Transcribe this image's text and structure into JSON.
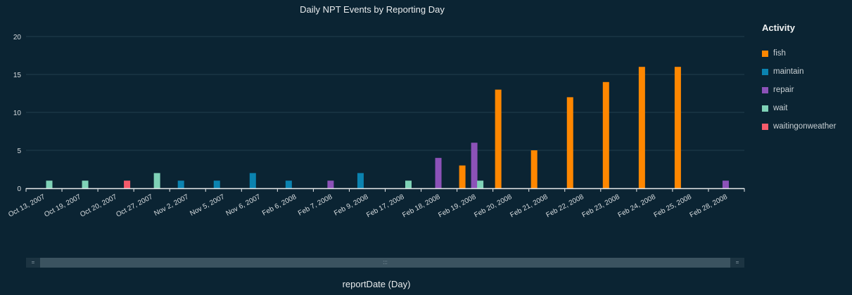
{
  "chart_data": {
    "type": "bar",
    "title": "Daily NPT Events by Reporting Day",
    "xlabel": "reportDate (Day)",
    "ylabel": "",
    "ylim": [
      0,
      20
    ],
    "yticks": [
      0,
      5,
      10,
      15,
      20
    ],
    "grid": true,
    "legend_title": "Activity",
    "legend_position": "right",
    "categories": [
      "Oct 13, 2007",
      "Oct 19, 2007",
      "Oct 20, 2007",
      "Oct 27, 2007",
      "Nov 2, 2007",
      "Nov 5, 2007",
      "Nov 6, 2007",
      "Feb 6, 2008",
      "Feb 7, 2008",
      "Feb 9, 2008",
      "Feb 17, 2008",
      "Feb 18, 2008",
      "Feb 19, 2008",
      "Feb 20, 2008",
      "Feb 21, 2008",
      "Feb 22, 2008",
      "Feb 23, 2008",
      "Feb 24, 2008",
      "Feb 25, 2008",
      "Feb 28, 2008"
    ],
    "series": [
      {
        "name": "fish",
        "color": "#ff8700",
        "values": [
          0,
          0,
          0,
          0,
          0,
          0,
          0,
          0,
          0,
          0,
          0,
          0,
          3,
          13,
          5,
          12,
          14,
          16,
          16,
          0
        ]
      },
      {
        "name": "maintain",
        "color": "#0b83b0",
        "values": [
          0,
          0,
          0,
          0,
          1,
          1,
          2,
          1,
          0,
          2,
          0,
          0,
          0,
          0,
          0,
          0,
          0,
          0,
          0,
          0
        ]
      },
      {
        "name": "repair",
        "color": "#8c52b8",
        "values": [
          0,
          0,
          0,
          0,
          0,
          0,
          0,
          0,
          1,
          0,
          0,
          4,
          6,
          0,
          0,
          0,
          0,
          0,
          0,
          1
        ]
      },
      {
        "name": "wait",
        "color": "#7fd2b7",
        "values": [
          1,
          1,
          0,
          2,
          0,
          0,
          0,
          0,
          0,
          0,
          1,
          0,
          1,
          0,
          0,
          0,
          0,
          0,
          0,
          0
        ]
      },
      {
        "name": "waitingonweather",
        "color": "#f55b6b",
        "values": [
          0,
          0,
          1,
          0,
          0,
          0,
          0,
          0,
          0,
          0,
          0,
          0,
          0,
          0,
          0,
          0,
          0,
          0,
          0,
          0
        ]
      }
    ]
  },
  "scrollbar": {
    "grip": ":::",
    "left_cap": "=",
    "right_cap": "="
  }
}
